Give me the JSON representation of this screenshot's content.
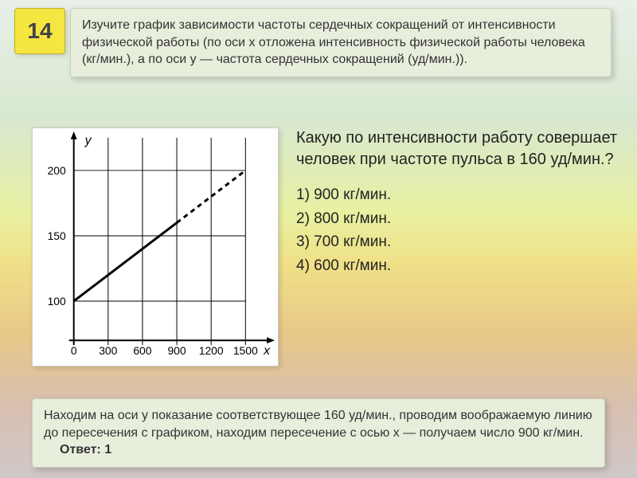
{
  "badge": {
    "number": "14"
  },
  "top_panel": {
    "text": "Изучите график зависимости частоты сердечных сокращений от интенсивности физической работы (по оси х отложена интенсивность физической работы человека (кг/мин.), а по оси у — частота сердечных сокращений (уд/мин.))."
  },
  "question": {
    "text": "Какую по интенсивности работу совершает человек при частоте пульса в 160 уд/мин.?"
  },
  "options": {
    "o1": "1) 900 кг/мин.",
    "o2": "2) 800 кг/мин.",
    "o3": "3) 700 кг/мин.",
    "o4": "4) 600 кг/мин."
  },
  "bottom_panel": {
    "text": "Находим на оси y показание соответствующее 160 уд/мин., проводим воображаемую линию до пересечения с графиком, находим пересечение с осью x — получаем число 900 кг/мин.",
    "answer_label": "Ответ: 1"
  },
  "chart": {
    "type": "line",
    "x_label": "x",
    "y_label": "y",
    "x_ticks": [
      0,
      300,
      600,
      900,
      1200,
      1500
    ],
    "y_ticks": [
      100,
      150,
      200
    ],
    "x_min": 0,
    "x_max": 1700,
    "y_min": 70,
    "y_max": 225,
    "grid_x": [
      300,
      600,
      900,
      1200,
      1500
    ],
    "grid_y": [
      100,
      150,
      200
    ],
    "solid_line": {
      "x1": 0,
      "y1": 100,
      "x2": 900,
      "y2": 160
    },
    "dashed_line": {
      "x1": 900,
      "y1": 160,
      "x2": 1500,
      "y2": 200
    },
    "line_color": "#000000",
    "grid_color": "#000000",
    "axis_color": "#000000",
    "background": "#ffffff",
    "tick_fontsize": 14,
    "label_fontsize": 16
  }
}
